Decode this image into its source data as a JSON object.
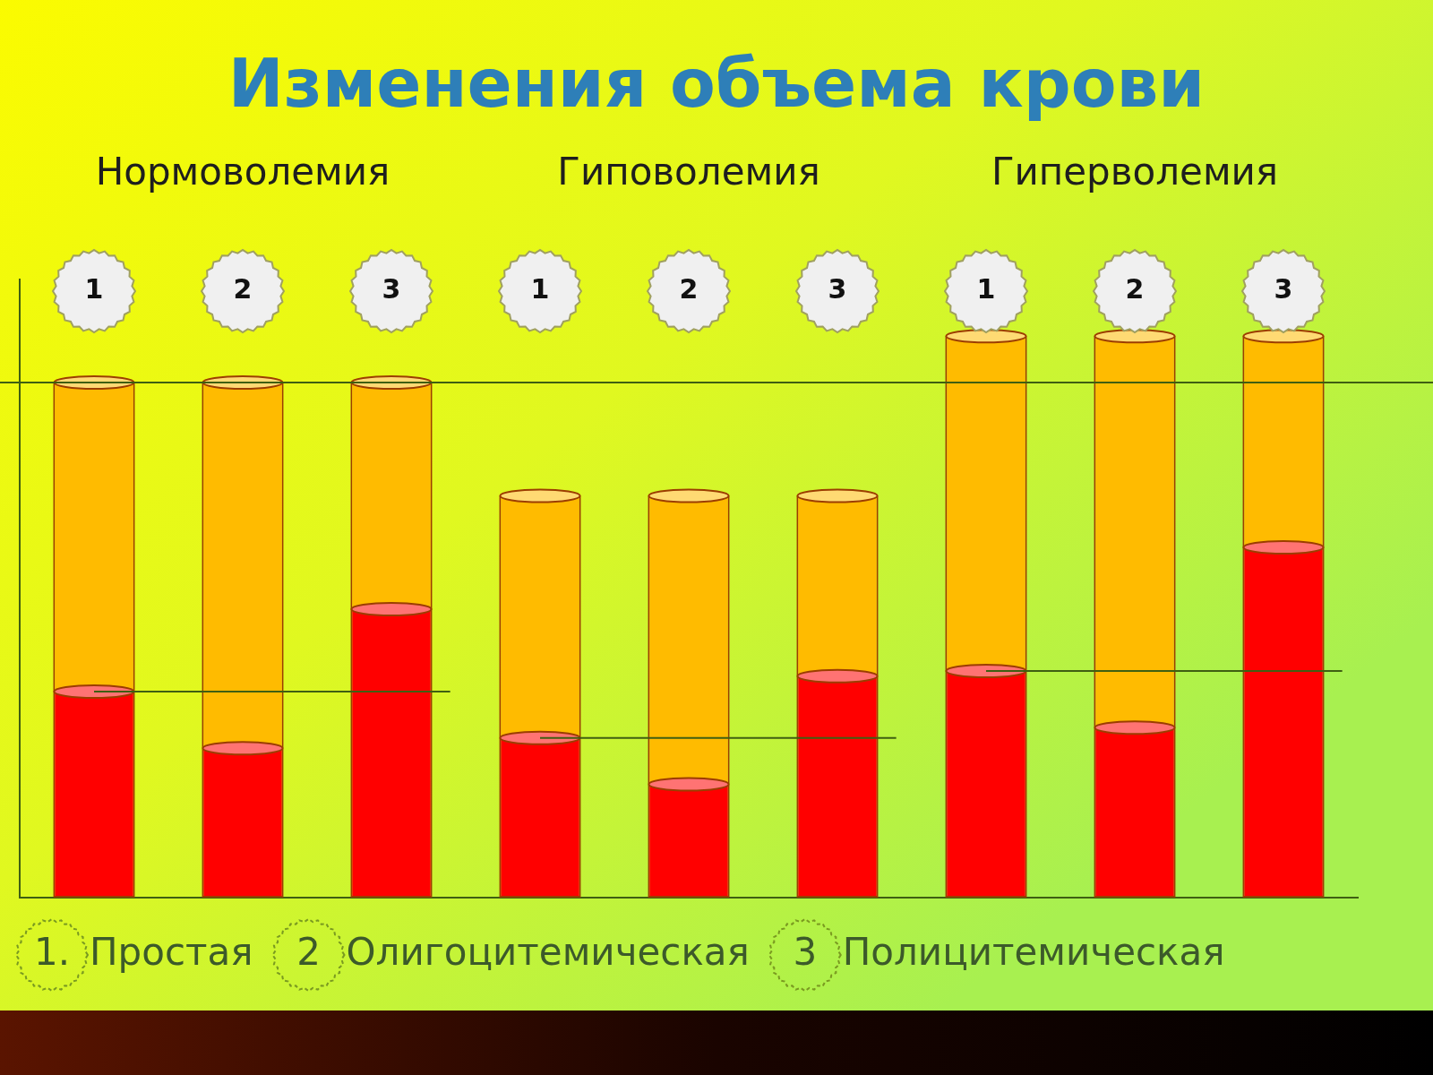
{
  "chart_data": {
    "type": "bar",
    "stacked": true,
    "title": "Изменения объема крови",
    "groups": [
      "Нормоволемия",
      "Гиповолемия",
      "Гиперволемия"
    ],
    "categories": [
      "1",
      "2",
      "3",
      "1",
      "2",
      "3",
      "1",
      "2",
      "3"
    ],
    "series": [
      {
        "color": "#ff0000",
        "values": [
          40,
          29,
          56,
          31,
          22,
          43,
          44,
          33,
          68
        ]
      },
      {
        "color": "#ffbb00",
        "values": [
          60,
          71,
          44,
          47,
          56,
          35,
          65,
          76,
          41
        ]
      }
    ],
    "variants": [
      {
        "number": "1.",
        "name": "Простая"
      },
      {
        "number": "2",
        "name": "Олигоцитемическая"
      },
      {
        "number": "3",
        "name": "Полицитемическая"
      }
    ],
    "ylim": [
      0,
      120
    ],
    "grid": false,
    "tick_labels": false
  }
}
